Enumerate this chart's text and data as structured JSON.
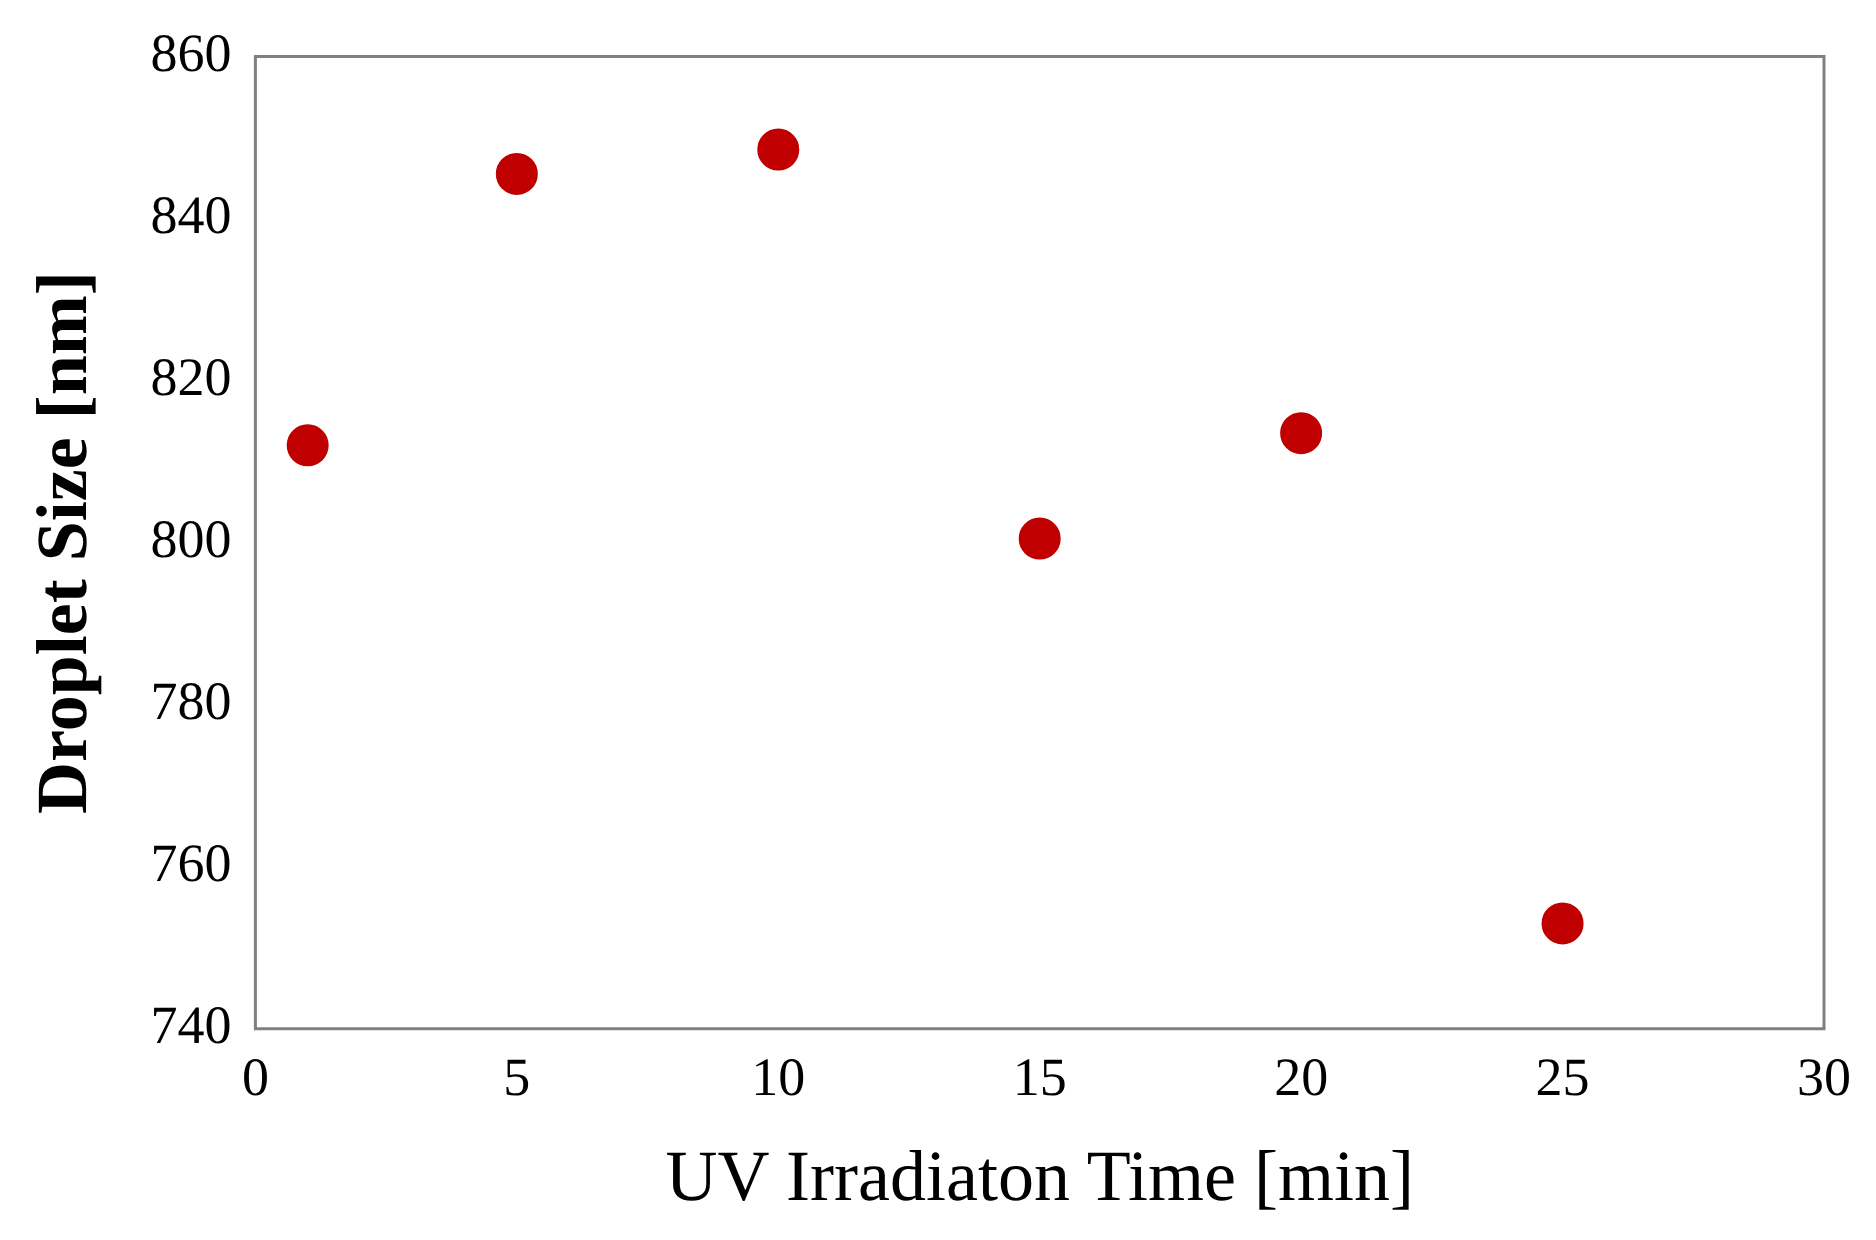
{
  "chart_data": {
    "type": "scatter",
    "xlabel": "UV Irradiaton Time [min]",
    "ylabel": "Droplet Size [nm]",
    "x": [
      1,
      5,
      10,
      15,
      20,
      25
    ],
    "series": [
      {
        "color": "#c00000",
        "values": [
          812,
          845.5,
          848.5,
          800.5,
          813.5,
          753
        ]
      }
    ],
    "xlim": [
      0,
      30
    ],
    "xticks": [
      0,
      5,
      10,
      15,
      20,
      25,
      30
    ],
    "ylim": [
      740,
      860
    ],
    "yticks": [
      740,
      760,
      780,
      800,
      820,
      840,
      860
    ],
    "grid": false,
    "legend": false,
    "marker": "circle"
  }
}
